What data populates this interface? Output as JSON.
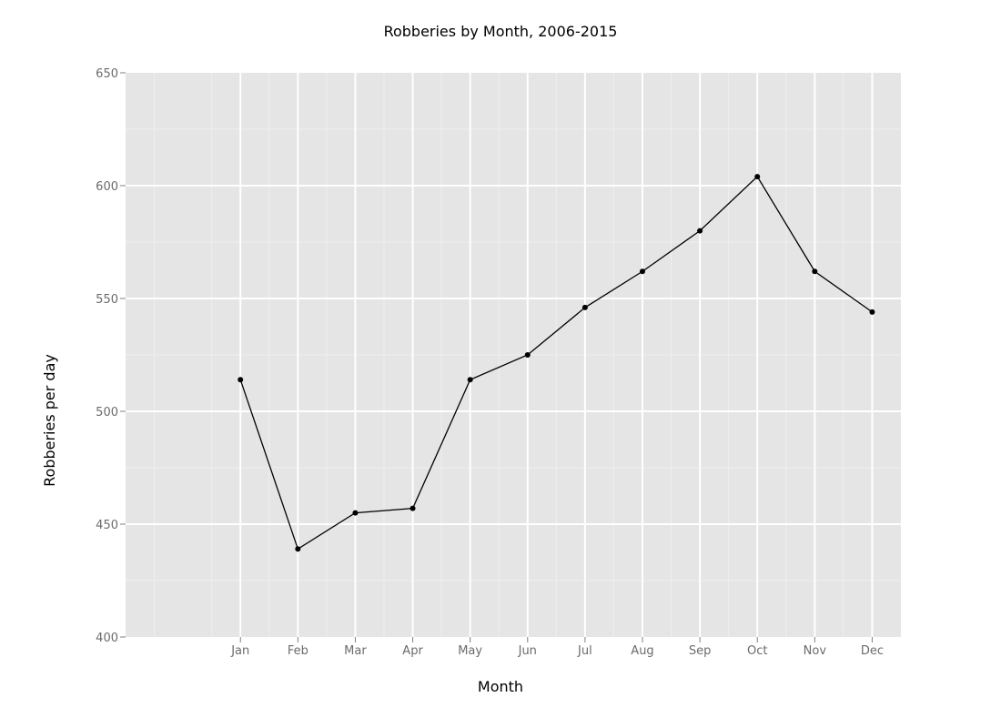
{
  "chart_data": {
    "type": "line",
    "title": "Robberies by Month, 2006-2015",
    "xlabel": "Month",
    "ylabel": "Robberies per day",
    "categories": [
      "Jan",
      "Feb",
      "Mar",
      "Apr",
      "May",
      "Jun",
      "Jul",
      "Aug",
      "Sep",
      "Oct",
      "Nov",
      "Dec"
    ],
    "series": [
      {
        "values": [
          514,
          439,
          455,
          457,
          514,
          525,
          546,
          562,
          580,
          604,
          562,
          544
        ]
      }
    ],
    "ylim": [
      400,
      650
    ],
    "yticks": [
      "400",
      "450",
      "500",
      "550",
      "600",
      "650"
    ],
    "grid": true,
    "legend": "none",
    "colors": {
      "panel": "#e5e5e5",
      "grid_major": "#ffffff",
      "grid_minor": "#efefef",
      "line": "#000000"
    }
  }
}
